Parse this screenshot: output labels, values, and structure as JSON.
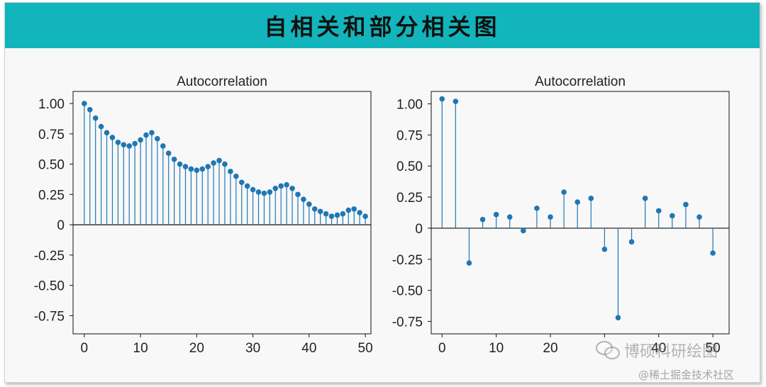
{
  "title": "自相关和部分相关图",
  "watermark": {
    "text": "博硕科研绘图",
    "icon": "wechat-icon"
  },
  "credit": "@稀土掘金技术社区",
  "colors": {
    "banner": "#12b5bb",
    "stem": "#1f77b4"
  },
  "chart_data": [
    {
      "type": "stem",
      "title": "Autocorrelation",
      "xlabel": "",
      "ylabel": "",
      "xlim": [
        -2,
        51
      ],
      "ylim": [
        -0.9,
        1.1
      ],
      "xticks": [
        0,
        10,
        20,
        30,
        40,
        50
      ],
      "yticks": [
        1.0,
        0.75,
        0.5,
        0.25,
        0,
        -0.25,
        -0.5,
        -0.75
      ],
      "ytick_labels": [
        "1.00",
        "0.75",
        "0.50",
        "0.25",
        "0",
        "-0.25",
        "-0.50",
        "-0.75"
      ],
      "x": [
        0,
        1,
        2,
        3,
        4,
        5,
        6,
        7,
        8,
        9,
        10,
        11,
        12,
        13,
        14,
        15,
        16,
        17,
        18,
        19,
        20,
        21,
        22,
        23,
        24,
        25,
        26,
        27,
        28,
        29,
        30,
        31,
        32,
        33,
        34,
        35,
        36,
        37,
        38,
        39,
        40,
        41,
        42,
        43,
        44,
        45,
        46,
        47,
        48,
        49,
        50
      ],
      "y": [
        1.0,
        0.95,
        0.88,
        0.81,
        0.76,
        0.72,
        0.68,
        0.66,
        0.65,
        0.67,
        0.7,
        0.74,
        0.76,
        0.71,
        0.65,
        0.59,
        0.54,
        0.5,
        0.48,
        0.46,
        0.45,
        0.46,
        0.48,
        0.51,
        0.53,
        0.5,
        0.44,
        0.4,
        0.35,
        0.32,
        0.29,
        0.27,
        0.26,
        0.27,
        0.3,
        0.32,
        0.33,
        0.3,
        0.25,
        0.21,
        0.17,
        0.13,
        0.11,
        0.09,
        0.07,
        0.08,
        0.09,
        0.12,
        0.13,
        0.1,
        0.07
      ]
    },
    {
      "type": "stem",
      "title": "Autocorrelation",
      "xlabel": "",
      "ylabel": "",
      "xlim": [
        -2,
        53
      ],
      "ylim": [
        -0.85,
        1.1
      ],
      "xticks": [
        0,
        10,
        20,
        30,
        40,
        50
      ],
      "xtick_labels": [
        "0",
        "10",
        "20",
        "",
        "40",
        "50"
      ],
      "yticks": [
        1.0,
        0.75,
        0.5,
        0.25,
        0,
        -0.25,
        -0.5,
        -0.75
      ],
      "ytick_labels": [
        "1.00",
        "0.75",
        "0.50",
        "0.25",
        "0",
        "-0.25",
        "-0.50",
        "-0.75"
      ],
      "x": [
        0,
        2.5,
        5,
        7.5,
        10,
        12.5,
        15,
        17.5,
        20,
        22.5,
        25,
        27.5,
        30,
        32.5,
        35,
        37.5,
        40,
        42.5,
        45,
        47.5,
        50
      ],
      "y": [
        1.04,
        1.02,
        -0.28,
        0.07,
        0.11,
        0.09,
        -0.02,
        0.16,
        0.09,
        0.29,
        0.21,
        0.24,
        -0.17,
        -0.72,
        -0.11,
        0.24,
        0.14,
        0.1,
        0.19,
        0.09,
        -0.2
      ]
    }
  ]
}
